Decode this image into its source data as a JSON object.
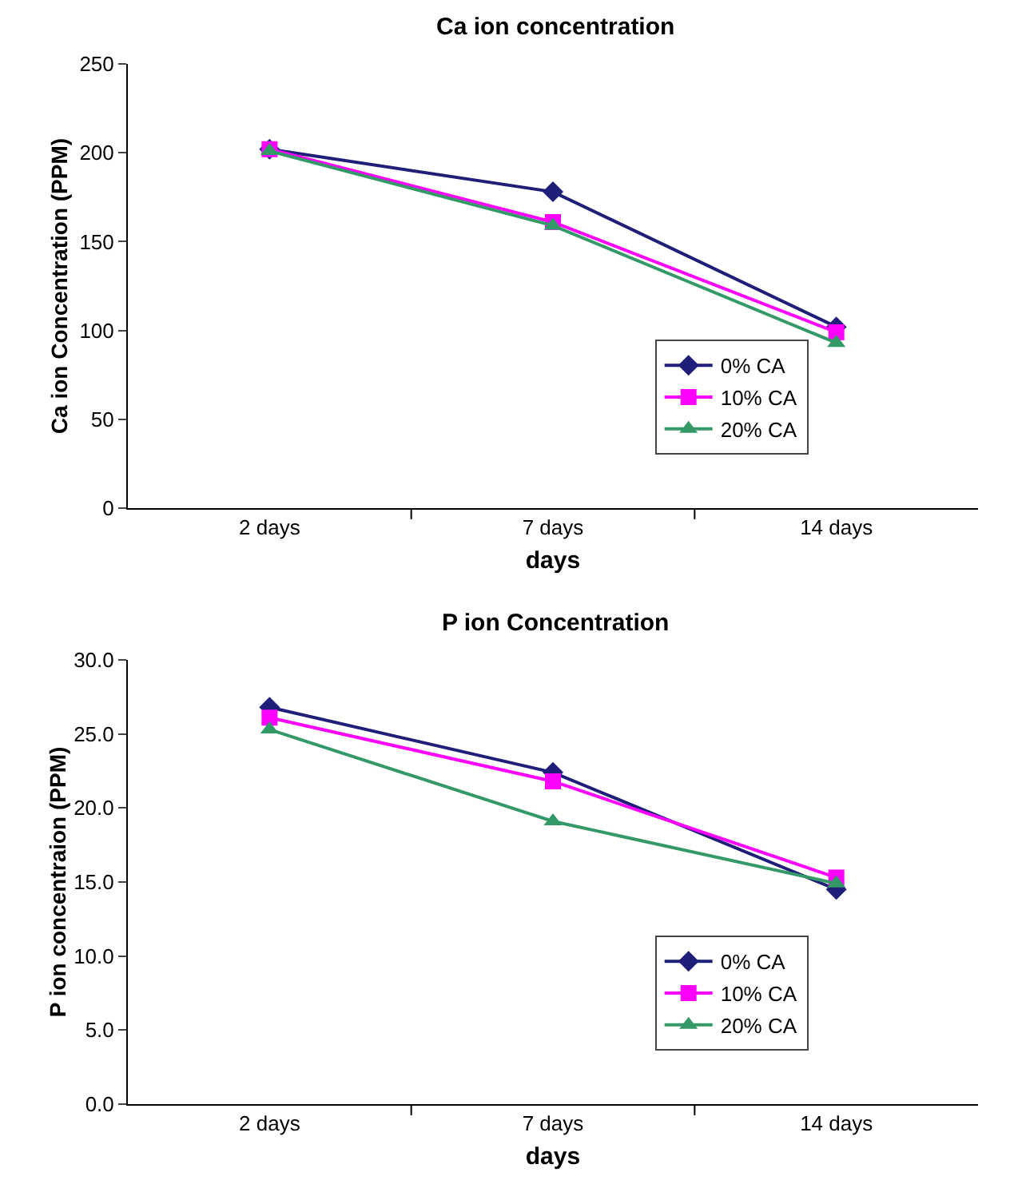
{
  "chart_data": [
    {
      "type": "line",
      "title": "Ca ion concentration",
      "xlabel": "days",
      "ylabel": "Ca ion Concentration (PPM)",
      "categories": [
        "2 days",
        "7 days",
        "14 days"
      ],
      "series": [
        {
          "name": "0% CA",
          "color": "#1f1f7a",
          "marker": "diamond",
          "values": [
            202,
            178,
            102
          ]
        },
        {
          "name": "10% CA",
          "color": "#ff00ff",
          "marker": "square",
          "values": [
            202,
            161,
            99
          ]
        },
        {
          "name": "20% CA",
          "color": "#339966",
          "marker": "triangle",
          "values": [
            201,
            159,
            93
          ]
        }
      ],
      "ylim": [
        0,
        250
      ],
      "yticks": [
        0,
        50,
        100,
        150,
        200,
        250
      ],
      "grid": false,
      "legend": "bottom right"
    },
    {
      "type": "line",
      "title": "P ion Concentration",
      "xlabel": "days",
      "ylabel": "P ion concentraion (PPM)",
      "categories": [
        "2 days",
        "7 days",
        "14 days"
      ],
      "series": [
        {
          "name": "0% CA",
          "color": "#1f1f7a",
          "marker": "diamond",
          "values": [
            26.8,
            22.4,
            14.5
          ]
        },
        {
          "name": "10% CA",
          "color": "#ff00ff",
          "marker": "square",
          "values": [
            26.1,
            21.8,
            15.3
          ]
        },
        {
          "name": "20% CA",
          "color": "#339966",
          "marker": "triangle",
          "values": [
            25.3,
            19.1,
            14.9
          ]
        }
      ],
      "ylim": [
        0,
        30
      ],
      "yticks": [
        {
          "value": 0,
          "label": "0.0"
        },
        {
          "value": 5,
          "label": "5.0"
        },
        {
          "value": 10,
          "label": "10.0"
        },
        {
          "value": 15,
          "label": "15.0"
        },
        {
          "value": 20,
          "label": "20.0"
        },
        {
          "value": 25,
          "label": "25.0"
        },
        {
          "value": 30,
          "label": "30.0"
        }
      ],
      "grid": false,
      "legend": "bottom right"
    }
  ]
}
